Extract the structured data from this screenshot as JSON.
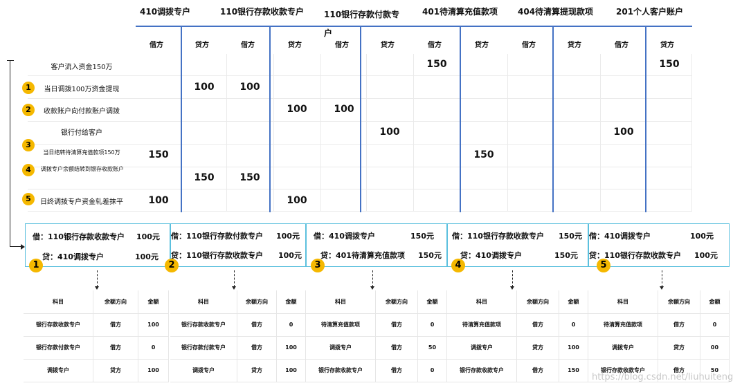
{
  "accounts": [
    {
      "title": "410调拨专户"
    },
    {
      "title": "110银行存款收款专户"
    },
    {
      "title": "110银行存款付款专户"
    },
    {
      "title": "401待清算充值款项"
    },
    {
      "title": "404待清算提现款项"
    },
    {
      "title": "201个人客户账户"
    }
  ],
  "column_labels": [
    "借方",
    "贷方",
    "借方",
    "贷方",
    "借方",
    "贷方",
    "借方",
    "贷方",
    "借方",
    "贷方",
    "借方",
    "贷方"
  ],
  "rows": [
    {
      "label": "客户流入资金150万",
      "marker": ""
    },
    {
      "label": "当日调拨100万资金提现",
      "marker": "1"
    },
    {
      "label": "收款账户向付款账户调拨",
      "marker": "2"
    },
    {
      "label": "银行付给客户",
      "marker": ""
    },
    {
      "label": "当日结转待清算充值款项150万",
      "marker": "3"
    },
    {
      "label": "调拨专户余额结转到银存收款账户",
      "marker": "4"
    },
    {
      "label": "日终调拨专户资金轧差抹平",
      "marker": "5"
    }
  ],
  "grid_values": [
    {
      "col": 6,
      "row": 0,
      "value": "150"
    },
    {
      "col": 11,
      "row": 0,
      "value": "150"
    },
    {
      "col": 1,
      "row": 1,
      "value": "100"
    },
    {
      "col": 2,
      "row": 1,
      "value": "100"
    },
    {
      "col": 3,
      "row": 2,
      "value": "100"
    },
    {
      "col": 4,
      "row": 2,
      "value": "100"
    },
    {
      "col": 5,
      "row": 3,
      "value": "100"
    },
    {
      "col": 10,
      "row": 3,
      "value": "100"
    },
    {
      "col": 0,
      "row": 4,
      "value": "150"
    },
    {
      "col": 7,
      "row": 4,
      "value": "150"
    },
    {
      "col": 1,
      "row": 5,
      "value": "150"
    },
    {
      "col": 2,
      "row": 5,
      "value": "150"
    },
    {
      "col": 0,
      "row": 6,
      "value": "100"
    },
    {
      "col": 3,
      "row": 6,
      "value": "100"
    }
  ],
  "entries": [
    {
      "marker": "1",
      "debit": "借：110银行存款收款专户",
      "debit_amount": "100元",
      "credit": "贷：410调拨专户",
      "credit_amount": "100元"
    },
    {
      "marker": "2",
      "debit": "借：110银行存款付款专户",
      "debit_amount": "100元",
      "credit": "贷：110银行存款收款专户",
      "credit_amount": "100元"
    },
    {
      "marker": "3",
      "debit": "借：410调拨专户",
      "debit_amount": "150元",
      "credit": "贷：401待清算充值款项",
      "credit_amount": "150元"
    },
    {
      "marker": "4",
      "debit": "借：110银行存款收款专户",
      "debit_amount": "150元",
      "credit": "贷：410调拨专户",
      "credit_amount": "150元"
    },
    {
      "marker": "5",
      "debit": "借：410调拨专户",
      "debit_amount": "100元",
      "credit": "贷：110银行存款收款专户",
      "credit_amount": "100元"
    }
  ],
  "balance_tables": [
    {
      "headers": [
        "科目",
        "余额方向",
        "金额"
      ],
      "rows": [
        [
          "银行存款收款专户",
          "借方",
          "100"
        ],
        [
          "银行存款付款专户",
          "借方",
          "0"
        ],
        [
          "调拨专户",
          "贷方",
          "100"
        ]
      ]
    },
    {
      "headers": [
        "科目",
        "余额方向",
        "金额"
      ],
      "rows": [
        [
          "银行存款收款专户",
          "借方",
          "0"
        ],
        [
          "银行存款付款专户",
          "借方",
          "100"
        ],
        [
          "调拨专户",
          "贷方",
          "100"
        ]
      ]
    },
    {
      "headers": [
        "科目",
        "余额方向",
        "金额"
      ],
      "rows": [
        [
          "待清算充值款项",
          "借方",
          "0"
        ],
        [
          "调拨专户",
          "借方",
          "50"
        ],
        [
          "银行存款收款专户",
          "借方",
          "0"
        ]
      ]
    },
    {
      "headers": [
        "科目",
        "余额方向",
        "金额"
      ],
      "rows": [
        [
          "待清算充值款项",
          "借方",
          "0"
        ],
        [
          "调拨专户",
          "贷方",
          "100"
        ],
        [
          "银行存款收款专户",
          "借方",
          "150"
        ]
      ]
    },
    {
      "headers": [
        "科目",
        "余额方向",
        "金额"
      ],
      "rows": [
        [
          "待清算充值款项",
          "借方",
          "0"
        ],
        [
          "调拨专户",
          "贷方",
          "00"
        ],
        [
          "银行存款收款专户",
          "借方",
          "50"
        ]
      ]
    }
  ],
  "watermark": "https://blog.csdn.net/liuhuiteng"
}
